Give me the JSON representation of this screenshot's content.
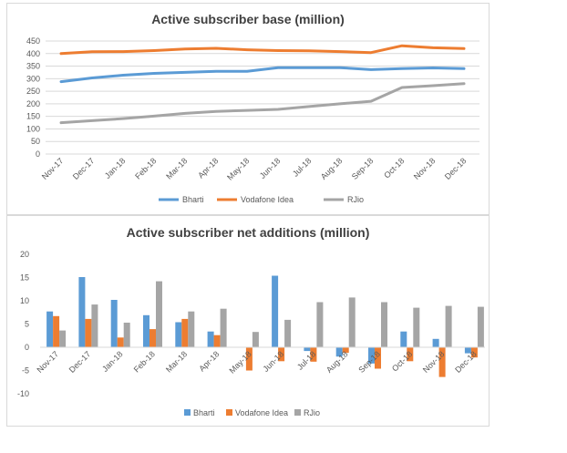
{
  "chart_data": [
    {
      "type": "line",
      "title": "Active subscriber base (million)",
      "categories": [
        "Nov-17",
        "Dec-17",
        "Jan-18",
        "Feb-18",
        "Mar-18",
        "Apr-18",
        "May-18",
        "Jun-18",
        "Jul-18",
        "Aug-18",
        "Sep-18",
        "Oct-18",
        "Nov-18",
        "Dec-18"
      ],
      "ylim": [
        0,
        450
      ],
      "yticks": [
        "0",
        "50",
        "100",
        "150",
        "200",
        "250",
        "300",
        "350",
        "400",
        "450"
      ],
      "grid": true,
      "legend_position": "bottom",
      "series": [
        {
          "name": "Bharti",
          "color": "#5b9bd5",
          "values": [
            288,
            303,
            314,
            321,
            325,
            329,
            329,
            344,
            344,
            344,
            336,
            340,
            343,
            340
          ]
        },
        {
          "name": "Vodafone Idea",
          "color": "#ed7d31",
          "values": [
            400,
            407,
            408,
            412,
            418,
            421,
            415,
            412,
            411,
            408,
            404,
            431,
            423,
            420
          ]
        },
        {
          "name": "RJio",
          "color": "#a5a5a5",
          "values": [
            125,
            133,
            141,
            151,
            162,
            170,
            174,
            178,
            189,
            200,
            210,
            265,
            272,
            280
          ]
        }
      ]
    },
    {
      "type": "bar",
      "title": "Active subscriber net additions (million)",
      "categories": [
        "Nov-17",
        "Dec-17",
        "Jan-18",
        "Feb-18",
        "Mar-18",
        "Apr-18",
        "May-18",
        "Jun-18",
        "Jul-18",
        "Aug-18",
        "Sep-18",
        "Oct-18",
        "Nov-18",
        "Dec-18"
      ],
      "ylim": [
        -10,
        20
      ],
      "yticks": [
        "-10",
        "-5",
        "0",
        "5",
        "10",
        "15",
        "20"
      ],
      "grid": false,
      "legend_position": "bottom",
      "series": [
        {
          "name": "Bharti",
          "color": "#5b9bd5",
          "values": [
            7.7,
            15.1,
            10.2,
            6.9,
            5.4,
            3.4,
            0,
            15.4,
            -0.8,
            -2.0,
            -3.5,
            3.4,
            1.8,
            -1.3
          ]
        },
        {
          "name": "Vodafone Idea",
          "color": "#ed7d31",
          "values": [
            6.7,
            6.1,
            2.1,
            3.9,
            6.1,
            2.6,
            -5.0,
            -3.0,
            -3.1,
            -1.2,
            -4.6,
            -3.0,
            -6.4,
            -2.2
          ]
        },
        {
          "name": "RJio",
          "color": "#a5a5a5",
          "values": [
            3.6,
            9.2,
            5.3,
            14.2,
            7.7,
            8.3,
            3.3,
            5.9,
            9.7,
            10.7,
            9.7,
            8.5,
            8.9,
            8.7
          ]
        }
      ]
    }
  ]
}
